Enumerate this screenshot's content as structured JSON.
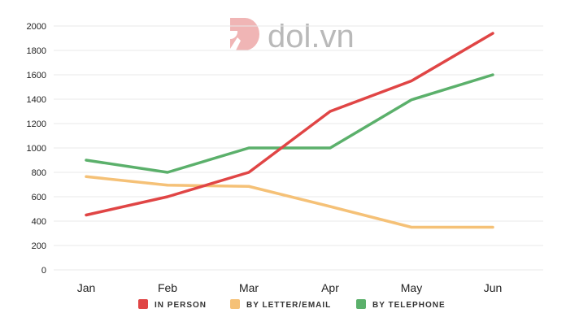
{
  "watermark": {
    "text": "dol.vn",
    "color": "#b9b9b9",
    "logo_color": "#f0b5b5"
  },
  "chart_data": {
    "type": "line",
    "title": "",
    "xlabel": "",
    "ylabel": "",
    "categories": [
      "Jan",
      "Feb",
      "Mar",
      "Apr",
      "May",
      "Jun"
    ],
    "ylim": [
      0,
      2000
    ],
    "yticks": [
      "0",
      "200",
      "400",
      "600",
      "800",
      "1000",
      "1200",
      "1400",
      "1600",
      "1800",
      "2000"
    ],
    "grid": true,
    "legend_position": "bottom",
    "series": [
      {
        "name": "IN PERSON",
        "color": "#e04545",
        "values": [
          450,
          600,
          800,
          1300,
          1550,
          1940
        ]
      },
      {
        "name": "BY LETTER/EMAIL",
        "color": "#f5c177",
        "values": [
          765,
          695,
          685,
          520,
          350,
          350
        ]
      },
      {
        "name": "BY TELEPHONE",
        "color": "#5bb06b",
        "values": [
          900,
          800,
          1000,
          1000,
          1395,
          1600
        ]
      }
    ]
  }
}
